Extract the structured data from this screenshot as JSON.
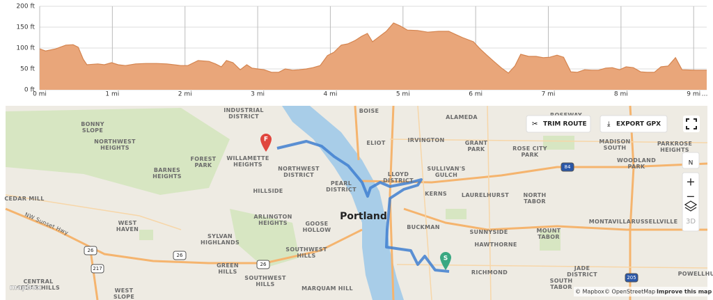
{
  "chart_data": {
    "type": "area",
    "color": "#e9a67a",
    "line_color": "#d4844f",
    "grid": true,
    "x": [
      0,
      0.08,
      0.22,
      0.36,
      0.46,
      0.53,
      0.6,
      0.65,
      0.8,
      0.89,
      0.99,
      1.08,
      1.18,
      1.32,
      1.46,
      1.61,
      1.75,
      1.94,
      2.04,
      2.18,
      2.33,
      2.42,
      2.5,
      2.57,
      2.66,
      2.76,
      2.85,
      2.92,
      3.0,
      3.09,
      3.19,
      3.29,
      3.38,
      3.48,
      3.57,
      3.67,
      3.76,
      3.86,
      3.96,
      4.05,
      4.15,
      4.24,
      4.34,
      4.43,
      4.51,
      4.58,
      4.67,
      4.77,
      4.87,
      4.96,
      5.06,
      5.2,
      5.34,
      5.49,
      5.63,
      5.73,
      5.82,
      5.97,
      6.06,
      6.16,
      6.25,
      6.35,
      6.45,
      6.54,
      6.62,
      6.73,
      6.83,
      6.93,
      7.02,
      7.12,
      7.21,
      7.31,
      7.4,
      7.5,
      7.6,
      7.69,
      7.79,
      7.88,
      7.98,
      8.07,
      8.17,
      8.27,
      8.36,
      8.46,
      8.55,
      8.65,
      8.75,
      8.84,
      9.03,
      9.18
    ],
    "values": [
      98,
      93,
      98,
      107,
      108,
      102,
      73,
      60,
      62,
      60,
      65,
      60,
      58,
      62,
      63,
      63,
      62,
      58,
      58,
      70,
      68,
      62,
      55,
      70,
      65,
      48,
      60,
      52,
      50,
      48,
      42,
      42,
      50,
      47,
      48,
      50,
      53,
      58,
      82,
      90,
      107,
      110,
      118,
      128,
      135,
      115,
      127,
      140,
      160,
      153,
      143,
      142,
      138,
      140,
      140,
      132,
      125,
      115,
      98,
      82,
      68,
      53,
      40,
      57,
      85,
      80,
      80,
      77,
      78,
      83,
      78,
      43,
      42,
      48,
      47,
      47,
      52,
      53,
      48,
      55,
      53,
      43,
      42,
      42,
      55,
      57,
      77,
      48,
      47,
      47
    ],
    "xlim": [
      0,
      9.18
    ],
    "ylim": [
      0,
      200
    ],
    "xticks": [
      {
        "value": 0,
        "label": "0 mi"
      },
      {
        "value": 1,
        "label": "1 mi"
      },
      {
        "value": 2,
        "label": "2 mi"
      },
      {
        "value": 3,
        "label": "3 mi"
      },
      {
        "value": 4,
        "label": "4 mi"
      },
      {
        "value": 5,
        "label": "5 mi"
      },
      {
        "value": 6,
        "label": "6 mi"
      },
      {
        "value": 7,
        "label": "7 mi"
      },
      {
        "value": 8,
        "label": "8 mi"
      },
      {
        "value": 9,
        "label": "9 mi"
      }
    ],
    "x_overflow": "…",
    "yticks": [
      {
        "value": 0,
        "label": "0 ft"
      },
      {
        "value": 50,
        "label": "50 ft"
      },
      {
        "value": 100,
        "label": "100 ft"
      },
      {
        "value": 150,
        "label": "150 ft"
      },
      {
        "value": 200,
        "label": "200 ft"
      }
    ]
  },
  "map": {
    "labels": [
      [
        "INDUSTRIAL",
        "DISTRICT"
      ],
      [
        "BONNY",
        "SLOPE"
      ],
      [
        "NORTHWEST",
        "HEIGHTS"
      ],
      [
        "BOISE"
      ],
      [
        "ALAMEDA"
      ],
      [
        "ROSEWAY"
      ],
      [
        "ELIOT"
      ],
      [
        "IRVINGTON"
      ],
      [
        "GRANT",
        "PARK"
      ],
      [
        "ROSE CITY",
        "PARK"
      ],
      [
        "MADISON",
        "SOUTH"
      ],
      [
        "PARKROSE",
        "HEIGHTS"
      ],
      [
        "FOREST",
        "PARK"
      ],
      [
        "WILLAMETTE",
        "HEIGHTS"
      ],
      [
        "NORTHWEST",
        "DISTRICT"
      ],
      [
        "BARNES",
        "HEIGHTS"
      ],
      [
        "WOODLAND",
        "PARK"
      ],
      [
        "LLOYD",
        "DISTRICT"
      ],
      [
        "SULLIVAN'S",
        "GULCH"
      ],
      [
        "PEARL",
        "DISTRICT"
      ],
      [
        "KERNS"
      ],
      [
        "LAURELHURST"
      ],
      [
        "NORTH",
        "TABOR"
      ],
      [
        "CEDAR MILL"
      ],
      [
        "HILLSIDE"
      ],
      [
        "WEST",
        "HAVEN"
      ],
      [
        "ARLINGTON",
        "HEIGHTS"
      ],
      [
        "Portland"
      ],
      [
        "GOOSE",
        "HOLLOW"
      ],
      [
        "BUCKMAN"
      ],
      [
        "SUNNYSIDE"
      ],
      [
        "MOUNT",
        "TABOR"
      ],
      [
        "MONTAVILLA"
      ],
      [
        "RUSSELLVILLE"
      ],
      [
        "SYLVAN",
        "HIGHLANDS"
      ],
      [
        "HAWTHORNE"
      ],
      [
        "NW Sunset Hwy"
      ],
      [
        "SOUTHWEST",
        "HILLS"
      ],
      [
        "GREEN",
        "HILLS"
      ],
      [
        "SOUTHWEST",
        "HILLS"
      ],
      [
        "CENTRAL",
        "CEDAR HILLS"
      ],
      [
        "WEST",
        "SLOPE"
      ],
      [
        "MARQUAM HILL"
      ],
      [
        "RICHMOND"
      ],
      [
        "JADE",
        "DISTRICT"
      ],
      [
        "SOUTH",
        "TABOR"
      ],
      [
        "POWELLHU"
      ]
    ],
    "shields": [
      "26",
      "217",
      "26",
      "26",
      "84",
      "205"
    ],
    "finish_marker": "F",
    "start_marker": "S",
    "trim_button": "TRIM ROUTE",
    "export_button": "EXPORT GPX",
    "compass": "N",
    "zoom_in": "+",
    "zoom_out": "−",
    "three_d": "3D",
    "attribution": [
      "© Mapbox",
      "© OpenStreetMap",
      "Improve this map"
    ],
    "logo": "mapbox"
  }
}
